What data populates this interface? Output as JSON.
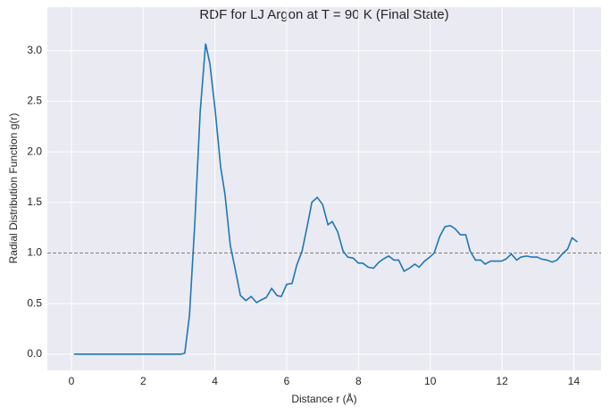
{
  "chart_data": {
    "type": "line",
    "title": "RDF for LJ Argon at T = 90 K (Final State)",
    "xlabel": "Distance r (Å)",
    "ylabel": "Radial Distribution Function g(r)",
    "x": [
      0.07,
      3.06,
      3.16,
      3.29,
      3.44,
      3.59,
      3.74,
      3.86,
      4.01,
      4.16,
      4.28,
      4.43,
      4.56,
      4.71,
      4.86,
      5.01,
      5.16,
      5.31,
      5.43,
      5.58,
      5.73,
      5.85,
      6.0,
      6.15,
      6.28,
      6.43,
      6.58,
      6.7,
      6.85,
      7.0,
      7.15,
      7.27,
      7.42,
      7.57,
      7.7,
      7.85,
      8.0,
      8.12,
      8.27,
      8.42,
      8.57,
      8.69,
      8.84,
      8.99,
      9.12,
      9.27,
      9.42,
      9.57,
      9.69,
      9.84,
      9.99,
      10.11,
      10.26,
      10.41,
      10.56,
      10.69,
      10.84,
      10.99,
      11.11,
      11.26,
      11.41,
      11.53,
      11.68,
      11.83,
      11.98,
      12.11,
      12.26,
      12.41,
      12.53,
      12.68,
      12.83,
      12.98,
      13.1,
      13.25,
      13.4,
      13.53,
      13.68,
      13.83,
      13.95,
      14.1
    ],
    "series": [
      {
        "color": "#1f77b4",
        "values": [
          0,
          0,
          0.01,
          0.38,
          1.3,
          2.4,
          3.07,
          2.87,
          2.4,
          1.85,
          1.58,
          1.07,
          0.85,
          0.58,
          0.53,
          0.57,
          0.51,
          0.54,
          0.56,
          0.65,
          0.58,
          0.57,
          0.69,
          0.7,
          0.88,
          1.02,
          1.28,
          1.5,
          1.55,
          1.48,
          1.28,
          1.31,
          1.21,
          1.02,
          0.96,
          0.95,
          0.9,
          0.9,
          0.86,
          0.85,
          0.91,
          0.94,
          0.97,
          0.93,
          0.93,
          0.82,
          0.85,
          0.89,
          0.86,
          0.92,
          0.96,
          1.0,
          1.16,
          1.26,
          1.27,
          1.24,
          1.18,
          1.18,
          1.02,
          0.93,
          0.93,
          0.89,
          0.92,
          0.92,
          0.92,
          0.94,
          0.99,
          0.93,
          0.96,
          0.97,
          0.96,
          0.96,
          0.94,
          0.93,
          0.91,
          0.93,
          0.99,
          1.04,
          1.15,
          1.11
        ]
      }
    ],
    "hline": 1,
    "hline_color": "#808080",
    "xlim": [
      -0.67,
      14.76
    ],
    "ylim": [
      -0.16,
      3.43
    ],
    "xticks": [
      0,
      2,
      4,
      6,
      8,
      10,
      12,
      14
    ],
    "yticks": [
      {
        "value": 0,
        "label": "0.0"
      },
      0.5,
      {
        "value": 1,
        "label": "1.0"
      },
      1.5,
      {
        "value": 2,
        "label": "2.0"
      },
      2.5,
      {
        "value": 3,
        "label": "3.0"
      }
    ],
    "grid": true
  }
}
